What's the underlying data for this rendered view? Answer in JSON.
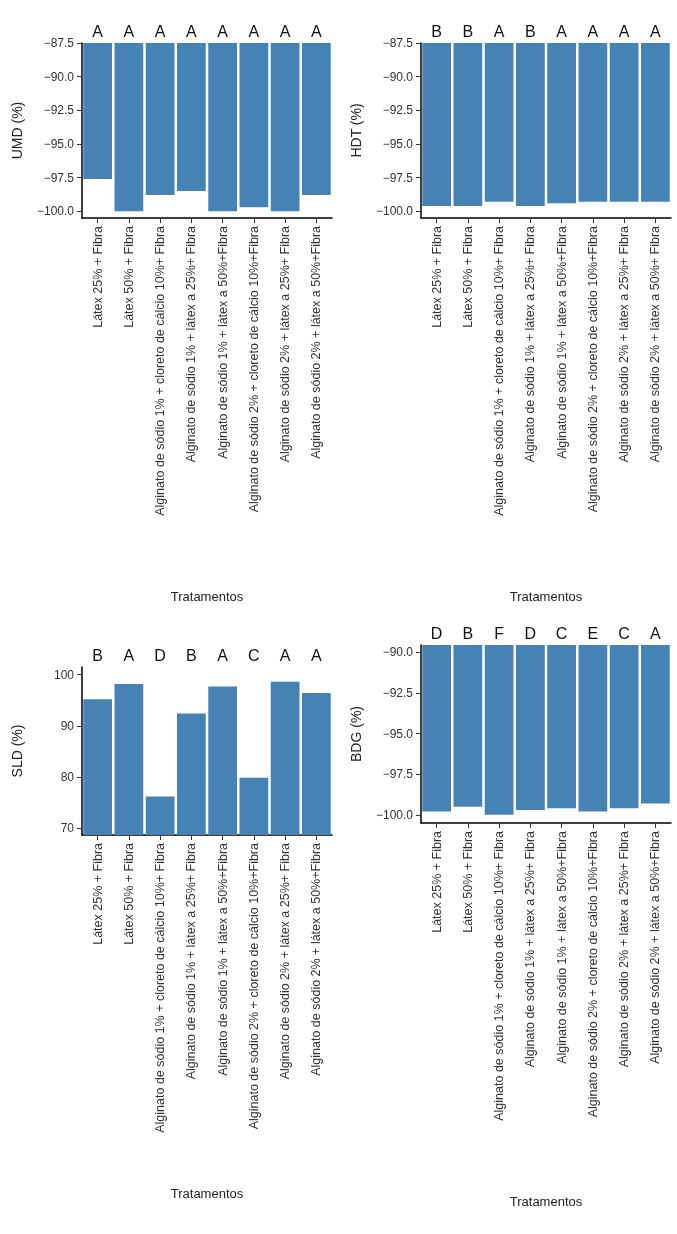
{
  "chart_data": [
    {
      "type": "bar",
      "ylabel": "UMD (%)",
      "xlabel": "Tratamentos",
      "categories": [
        "Látex 25% + Fibra",
        "Látex 50% + Fibra",
        "Alginato de sódio 1% + cloreto de cálcio 10%+ Fibra",
        "Alginato de sódio 1% + látex a 25%+ Fibra",
        "Alginato de sódio 1% + látex a 50%+Fibra",
        "Alginato de sódio 2% + cloreto de cálcio 10%+Fibra",
        "Alginato de sódio 2% + látex a 25%+ Fibra",
        "Alginato de sódio 2% + látex a 50%+Fibra"
      ],
      "values": [
        -97.6,
        -100.0,
        -98.8,
        -98.5,
        -100.0,
        -99.7,
        -100.0,
        -98.8
      ],
      "color": "#4682b4",
      "ylim": [
        -100.5,
        -87.5
      ],
      "yticks": [
        {
          "value": -100,
          "label": "−100.0"
        },
        {
          "value": -97.5,
          "label": "−97.5"
        },
        {
          "value": -95,
          "label": "−95.0"
        },
        {
          "value": -92.5,
          "label": "−92.5"
        },
        {
          "value": -90,
          "label": "−90.0"
        },
        {
          "value": -87.5,
          "label": "−87.5"
        }
      ],
      "annotations": [
        "A",
        "A",
        "A",
        "A",
        "A",
        "A",
        "A",
        "A"
      ]
    },
    {
      "type": "bar",
      "ylabel": "HDT (%)",
      "xlabel": "Tratamentos",
      "categories": [
        "Látex 25% + Fibra",
        "Látex 50% + Fibra",
        "Alginato de sódio 1% + cloreto de cálcio 10%+ Fibra",
        "Alginato de sódio 1% + látex a 25%+ Fibra",
        "Alginato de sódio 1% + látex a 50%+Fibra",
        "Alginato de sódio 2% + cloreto de cálcio 10%+Fibra",
        "Alginato de sódio 2% + látex a 25%+ Fibra",
        "Alginato de sódio 2% + látex a 50%+ Fibra"
      ],
      "values": [
        -99.6,
        -99.6,
        -99.3,
        -99.6,
        -99.4,
        -99.3,
        -99.3,
        -99.3
      ],
      "color": "#4682b4",
      "ylim": [
        -100.5,
        -87.5
      ],
      "yticks": [
        {
          "value": -100,
          "label": "−100.0"
        },
        {
          "value": -97.5,
          "label": "−97.5"
        },
        {
          "value": -95,
          "label": "−95.0"
        },
        {
          "value": -92.5,
          "label": "−92.5"
        },
        {
          "value": -90,
          "label": "−90.0"
        },
        {
          "value": -87.5,
          "label": "−87.5"
        }
      ],
      "annotations": [
        "B",
        "B",
        "A",
        "B",
        "A",
        "A",
        "A",
        "A"
      ]
    },
    {
      "type": "bar",
      "ylabel": "SLD (%)",
      "xlabel": "Tratamentos",
      "categories": [
        "Látex 25% + Fibra",
        "Látex 50% + Fibra",
        "Alginato de sódio 1% + cloreto de cálcio 10%+ Fibra",
        "Alginato de sódio 1% + látex a 25%+ Fibra",
        "Alginato de sódio 1% + látex a 50%+Fibra",
        "Alginato de sódio 2% + cloreto de cálcio 10%+Fibra",
        "Alginato de sódio 2% + látex a 25%+ Fibra",
        "Alginato de sódio 2% + látex a 50%+Fibra"
      ],
      "values": [
        95.2,
        98.2,
        76.2,
        92.4,
        97.7,
        79.9,
        98.6,
        96.4
      ],
      "color": "#4682b4",
      "ylim": [
        68.7,
        101.5
      ],
      "yticks": [
        70,
        80,
        90,
        100
      ],
      "annotations": [
        "B",
        "A",
        "D",
        "B",
        "A",
        "C",
        "A",
        "A"
      ]
    },
    {
      "type": "bar",
      "ylabel": "BDG (%)",
      "xlabel": "Tratamentos",
      "categories": [
        "Látex 25% + Fibra",
        "Látex 50% + Fibra",
        "Alginato de sódio 1% + cloreto de cálcio 10%+ Fibra",
        "Alginato de sódio 1% + látex a 25%+ Fibra",
        "Alginato de sódio 1% + látex a 50%+Fibra",
        "Alginato de sódio 2% + cloreto de cálcio 10%+Fibra",
        "Alginato de sódio 2% + látex a 25%+ Fibra",
        "Alginato de sódio 2% + látex a 50%+Fibra"
      ],
      "values": [
        -99.8,
        -99.5,
        -100.0,
        -99.7,
        -99.6,
        -99.8,
        -99.6,
        -99.3
      ],
      "color": "#4682b4",
      "ylim": [
        -100.5,
        -89.55
      ],
      "yticks": [
        {
          "value": -100,
          "label": "−100.0"
        },
        {
          "value": -97.5,
          "label": "−97.5"
        },
        {
          "value": -95,
          "label": "−95.0"
        },
        {
          "value": -92.5,
          "label": "−92.5"
        },
        {
          "value": -90,
          "label": "−90.0"
        }
      ],
      "annotations": [
        "D",
        "B",
        "F",
        "D",
        "C",
        "E",
        "C",
        "A"
      ]
    }
  ]
}
